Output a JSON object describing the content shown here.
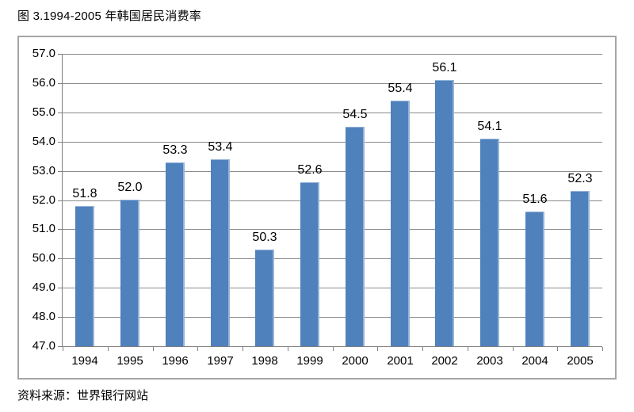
{
  "page": {
    "title": "图 3.1994-2005 年韩国居民消费率",
    "source_note": "资料来源：世界银行网站"
  },
  "chart_data": {
    "type": "bar",
    "title": "图 3.1994-2005 年韩国居民消费率",
    "categories": [
      "1994",
      "1995",
      "1996",
      "1997",
      "1998",
      "1999",
      "2000",
      "2001",
      "2002",
      "2003",
      "2004",
      "2005"
    ],
    "values": [
      51.8,
      52.0,
      53.3,
      53.4,
      50.3,
      52.6,
      54.5,
      55.4,
      56.1,
      54.1,
      51.6,
      52.3
    ],
    "value_labels": [
      "51.8",
      "52.0",
      "53.3",
      "53.4",
      "50.3",
      "52.6",
      "54.5",
      "55.4",
      "56.1",
      "54.1",
      "51.6",
      "52.3"
    ],
    "xlabel": "",
    "ylabel": "",
    "ylim": [
      47.0,
      57.0
    ],
    "ytick_step": 1.0,
    "ytick_labels": [
      "57.0",
      "56.0",
      "55.0",
      "54.0",
      "53.0",
      "52.0",
      "51.0",
      "50.0",
      "49.0",
      "48.0",
      "47.0"
    ],
    "grid": true,
    "legend": "none",
    "colors": {
      "bar_fill": "#4F81BD",
      "bar_edge": "#95B3D7",
      "gridline": "#8C8C8C",
      "axis_line": "#808080",
      "chart_border": "#A6A6A6",
      "text": "#000000",
      "background": "#FFFFFF"
    },
    "source_note": "资料来源：世界银行网站"
  }
}
